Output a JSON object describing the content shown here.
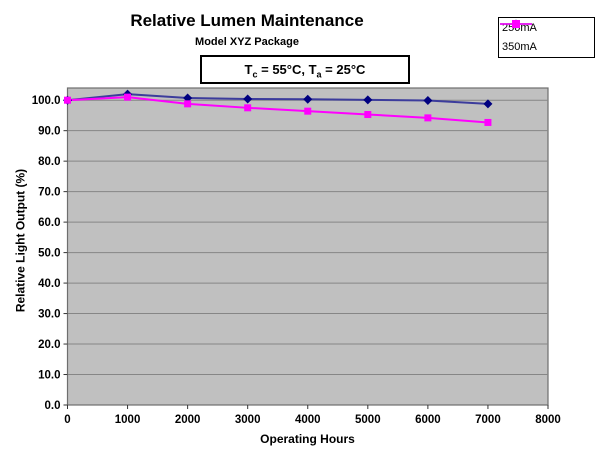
{
  "chart_data": {
    "type": "line",
    "title": "Relative Lumen Maintenance",
    "subtitle": "Model XYZ Package",
    "xlabel": "Operating Hours",
    "ylabel": "Relative Light Output (%)",
    "x": [
      0,
      1000,
      2000,
      3000,
      4000,
      5000,
      6000,
      7000
    ],
    "series": [
      {
        "name": "250mA",
        "color": "#000080",
        "line_color": "#3c3c9c",
        "marker": "diamond",
        "values": [
          100.0,
          102.0,
          100.7,
          100.4,
          100.3,
          100.1,
          99.9,
          98.8
        ]
      },
      {
        "name": "350mA",
        "color": "#ff00ff",
        "line_color": "#ff00ff",
        "marker": "square",
        "values": [
          100.0,
          101.0,
          98.8,
          97.5,
          96.4,
          95.3,
          94.2,
          92.7
        ]
      }
    ],
    "xlim": [
      0,
      8000
    ],
    "ylim": [
      0,
      104
    ],
    "xticks": [
      0,
      1000,
      2000,
      3000,
      4000,
      5000,
      6000,
      7000,
      8000
    ],
    "yticks": [
      0,
      10,
      20,
      30,
      40,
      50,
      60,
      70,
      80,
      90,
      100
    ],
    "ytick_labels": [
      "0.0",
      "10.0",
      "20.0",
      "30.0",
      "40.0",
      "50.0",
      "60.0",
      "70.0",
      "80.0",
      "90.0",
      "100.0"
    ],
    "grid": true,
    "legend_position": "top-right",
    "plot_bg_color": "#c0c0c0",
    "gridline_color": "#868686",
    "plot_border_color": "#6e6e6e",
    "axis_text_color": "#000000"
  },
  "annotation_box": {
    "segments": [
      {
        "text": "T",
        "sub": false
      },
      {
        "text": "c",
        "sub": true
      },
      {
        "text": " = 55°C, T",
        "sub": false
      },
      {
        "text": "a",
        "sub": true
      },
      {
        "text": " = 25°C",
        "sub": false
      }
    ]
  }
}
